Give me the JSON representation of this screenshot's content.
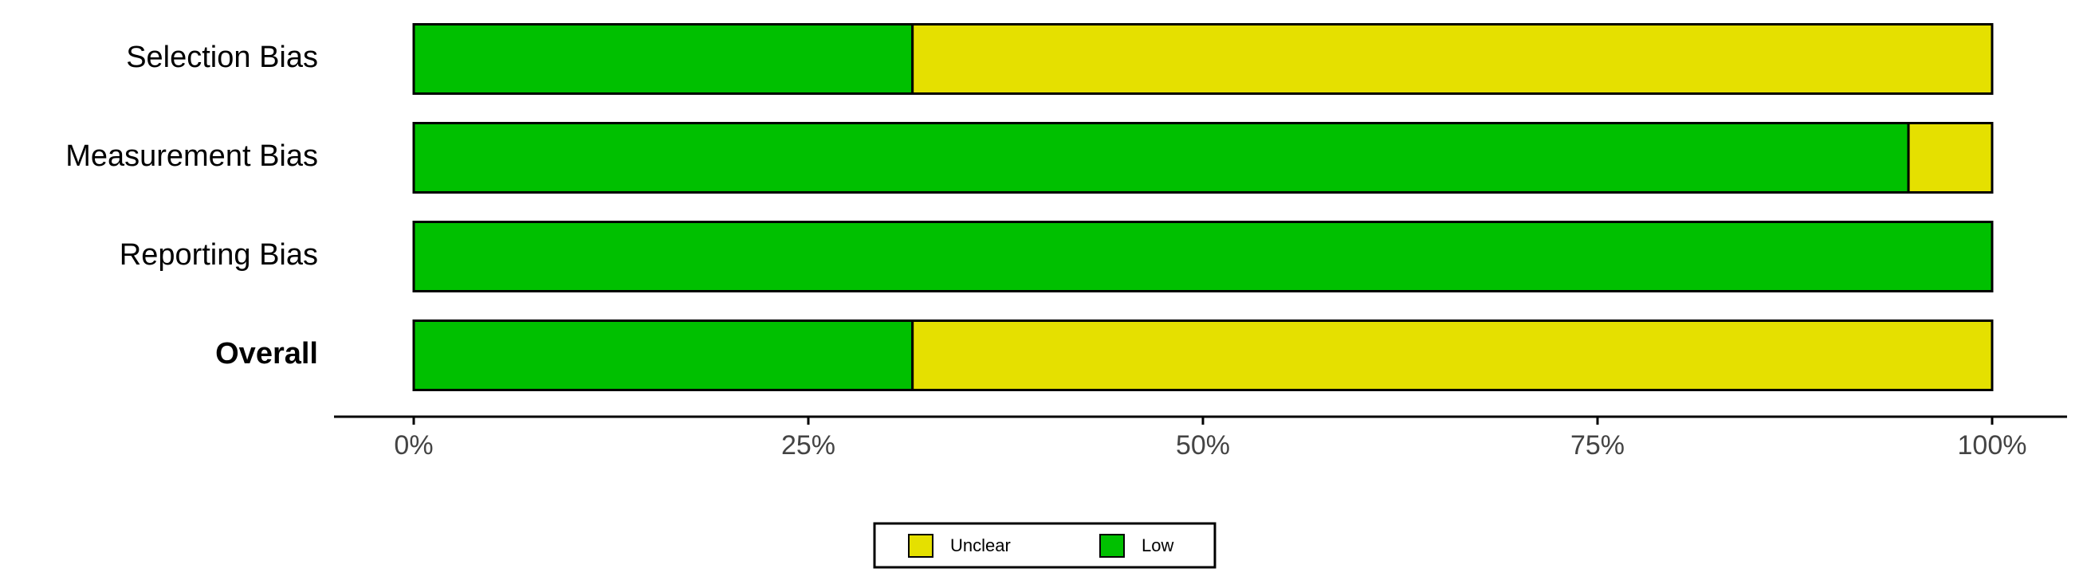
{
  "chart_data": {
    "type": "stacked-bar-horizontal",
    "categories": [
      "Selection Bias",
      "Measurement Bias",
      "Reporting Bias",
      "Overall"
    ],
    "series": [
      {
        "name": "Unclear",
        "color": "#e5e000",
        "values": [
          68.4,
          5.3,
          0,
          68.4
        ]
      },
      {
        "name": "Low",
        "color": "#00c000",
        "values": [
          31.6,
          94.7,
          100,
          31.6
        ]
      }
    ],
    "xlim": [
      0,
      100
    ],
    "xticks": [
      {
        "value": 0,
        "label": "0%"
      },
      {
        "value": 25,
        "label": "25%"
      },
      {
        "value": 50,
        "label": "50%"
      },
      {
        "value": 75,
        "label": "75%"
      },
      {
        "value": 100,
        "label": "100%"
      }
    ],
    "legend": "bottom"
  }
}
